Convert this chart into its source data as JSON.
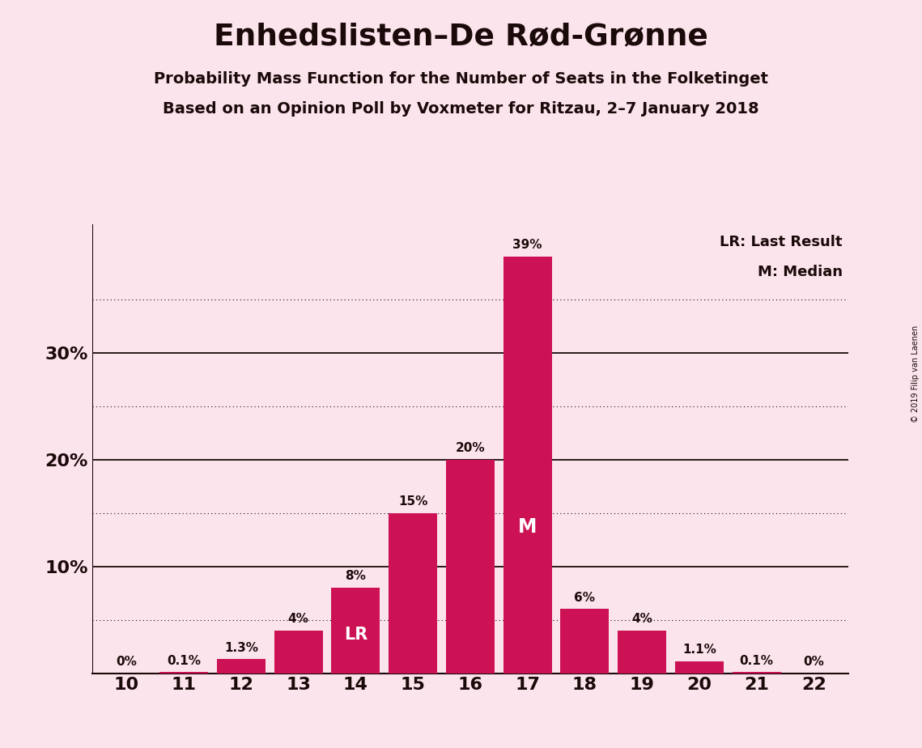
{
  "title": "Enhedslisten–De Rød-Grønne",
  "subtitle1": "Probability Mass Function for the Number of Seats in the Folketinget",
  "subtitle2": "Based on an Opinion Poll by Voxmeter for Ritzau, 2–7 January 2018",
  "copyright": "© 2019 Filip van Laenen",
  "categories": [
    10,
    11,
    12,
    13,
    14,
    15,
    16,
    17,
    18,
    19,
    20,
    21,
    22
  ],
  "values": [
    0.0,
    0.1,
    1.3,
    4.0,
    8.0,
    15.0,
    20.0,
    39.0,
    6.0,
    4.0,
    1.1,
    0.1,
    0.0
  ],
  "labels": [
    "0%",
    "0.1%",
    "1.3%",
    "4%",
    "8%",
    "15%",
    "20%",
    "39%",
    "6%",
    "4%",
    "1.1%",
    "0.1%",
    "0%"
  ],
  "bar_color": "#cc1155",
  "background_color": "#fce4ec",
  "text_color": "#1a0a0a",
  "last_result_seat": 14,
  "median_seat": 17,
  "ylim": [
    0,
    42
  ],
  "legend_line1": "LR: Last Result",
  "legend_line2": "M: Median",
  "lr_label": "LR",
  "m_label": "M"
}
